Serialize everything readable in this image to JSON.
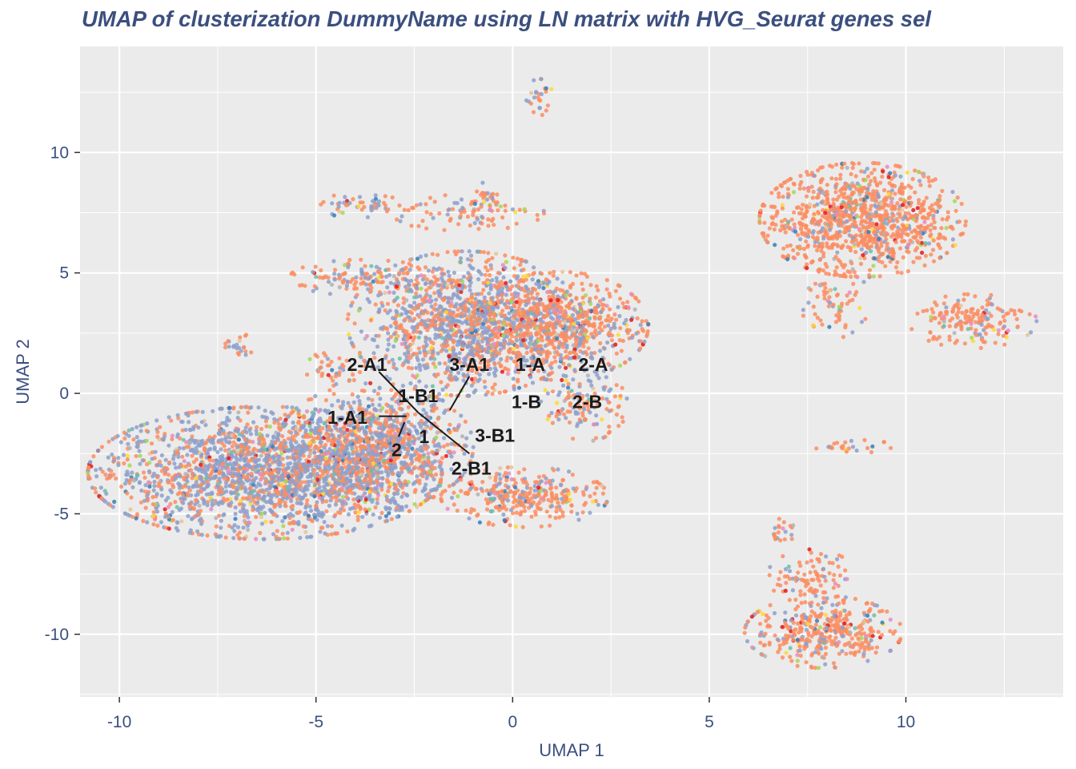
{
  "chart_data": {
    "type": "scatter",
    "title": "UMAP of clusterization DummyName using LN matrix with HVG_Seurat genes sel",
    "xlabel": "UMAP 1",
    "ylabel": "UMAP 2",
    "xlim": [
      -11.0,
      14.0
    ],
    "ylim": [
      -12.6,
      14.4
    ],
    "x_ticks": [
      -10,
      -5,
      0,
      5,
      10
    ],
    "y_ticks": [
      -10,
      -5,
      0,
      5,
      10
    ],
    "x_tick_labels": [
      "-10",
      "-5",
      "0",
      "5",
      "10"
    ],
    "y_tick_labels": [
      "-10",
      "-5",
      "0",
      "5",
      "10"
    ],
    "grid": true,
    "panel_background": "#ebebeb",
    "grid_color": "#ffffff",
    "text_color": "#3b4f7f",
    "point_colors": [
      "#fc8d62",
      "#8da0cb",
      "#66c2a5",
      "#e78ac3",
      "#a6d854",
      "#ffd92f",
      "#e5c494",
      "#b3b3b3",
      "#e41a1c",
      "#377eb8"
    ],
    "clusters": [
      {
        "x": -6.3,
        "y": -3.3,
        "rx": 3.6,
        "ry": 2.2,
        "share_blue": 0.65,
        "density": 1.0
      },
      {
        "x": -3.5,
        "y": -2.2,
        "rx": 2.0,
        "ry": 2.1,
        "share_blue": 0.5,
        "density": 0.9
      },
      {
        "x": -1.2,
        "y": 2.9,
        "rx": 2.4,
        "ry": 2.4,
        "share_blue": 0.55,
        "density": 0.9
      },
      {
        "x": 1.2,
        "y": 2.8,
        "rx": 1.8,
        "ry": 1.8,
        "share_blue": 0.3,
        "density": 0.8
      },
      {
        "x": -3.8,
        "y": 4.8,
        "rx": 1.5,
        "ry": 0.6,
        "share_blue": 0.35,
        "density": 0.4
      },
      {
        "x": -3.9,
        "y": 7.8,
        "rx": 0.9,
        "ry": 0.4,
        "share_blue": 0.5,
        "density": 0.3
      },
      {
        "x": -1.2,
        "y": 7.5,
        "rx": 1.6,
        "ry": 0.6,
        "share_blue": 0.3,
        "density": 0.25
      },
      {
        "x": -0.7,
        "y": 8.0,
        "rx": 0.4,
        "ry": 0.6,
        "share_blue": 0.3,
        "density": 0.15
      },
      {
        "x": 0.3,
        "y": -4.3,
        "rx": 1.7,
        "ry": 1.0,
        "share_blue": 0.2,
        "density": 0.7
      },
      {
        "x": 0.7,
        "y": 12.3,
        "rx": 0.35,
        "ry": 0.6,
        "share_blue": 0.5,
        "density": 0.1
      },
      {
        "x": 1.8,
        "y": -0.5,
        "rx": 0.9,
        "ry": 1.2,
        "share_blue": 0.4,
        "density": 0.4
      },
      {
        "x": -7.0,
        "y": 2.0,
        "rx": 0.4,
        "ry": 0.4,
        "share_blue": 0.4,
        "density": 0.05
      },
      {
        "x": -4.5,
        "y": 1.0,
        "rx": 0.6,
        "ry": 0.7,
        "share_blue": 0.2,
        "density": 0.2
      },
      {
        "x": 8.9,
        "y": 7.2,
        "rx": 2.1,
        "ry": 1.9,
        "share_blue": 0.12,
        "density": 1.0
      },
      {
        "x": 11.7,
        "y": 3.0,
        "rx": 1.3,
        "ry": 0.9,
        "share_blue": 0.12,
        "density": 0.5
      },
      {
        "x": 8.2,
        "y": 3.8,
        "rx": 0.7,
        "ry": 1.2,
        "share_blue": 0.1,
        "density": 0.25
      },
      {
        "x": 8.6,
        "y": -2.2,
        "rx": 0.9,
        "ry": 0.22,
        "share_blue": 0.1,
        "density": 0.1
      },
      {
        "x": 7.9,
        "y": -9.9,
        "rx": 1.6,
        "ry": 1.2,
        "share_blue": 0.2,
        "density": 0.75
      },
      {
        "x": 7.6,
        "y": -7.6,
        "rx": 0.9,
        "ry": 0.9,
        "share_blue": 0.15,
        "density": 0.35
      },
      {
        "x": 6.8,
        "y": -5.6,
        "rx": 0.3,
        "ry": 0.6,
        "share_blue": 0.2,
        "density": 0.05
      }
    ],
    "annotations": [
      {
        "text": "2-A1",
        "x": -3.7,
        "y": 1.2,
        "line_to": [
          -3.4,
          0.9
        ],
        "line_from": [
          -2.4,
          -0.8
        ]
      },
      {
        "text": "1-B1",
        "x": -2.4,
        "y": -0.1
      },
      {
        "text": "3-A1",
        "x": -1.1,
        "y": 1.2,
        "line_from": [
          -1.6,
          -0.7
        ],
        "line_to": [
          -1.1,
          0.7
        ]
      },
      {
        "text": "1-A",
        "x": 0.45,
        "y": 1.2
      },
      {
        "text": "2-A",
        "x": 2.05,
        "y": 1.2
      },
      {
        "text": "1-B",
        "x": 0.35,
        "y": -0.35
      },
      {
        "text": "2-B",
        "x": 1.9,
        "y": -0.35
      },
      {
        "text": "1-A1",
        "x": -4.2,
        "y": -1.0,
        "line_from": [
          -3.4,
          -0.95
        ],
        "line_to": [
          -2.7,
          -0.95
        ]
      },
      {
        "text": "1",
        "x": -2.25,
        "y": -1.8
      },
      {
        "text": "3-B1",
        "x": -0.45,
        "y": -1.75,
        "line_from": [
          -2.4,
          -0.8
        ],
        "line_to": [
          -1.1,
          -2.5
        ]
      },
      {
        "text": "2",
        "x": -2.95,
        "y": -2.35,
        "line_from": [
          -2.9,
          -1.8
        ],
        "line_to": [
          -2.75,
          -1.2
        ]
      },
      {
        "text": "2-B1",
        "x": -1.05,
        "y": -3.1
      }
    ]
  }
}
